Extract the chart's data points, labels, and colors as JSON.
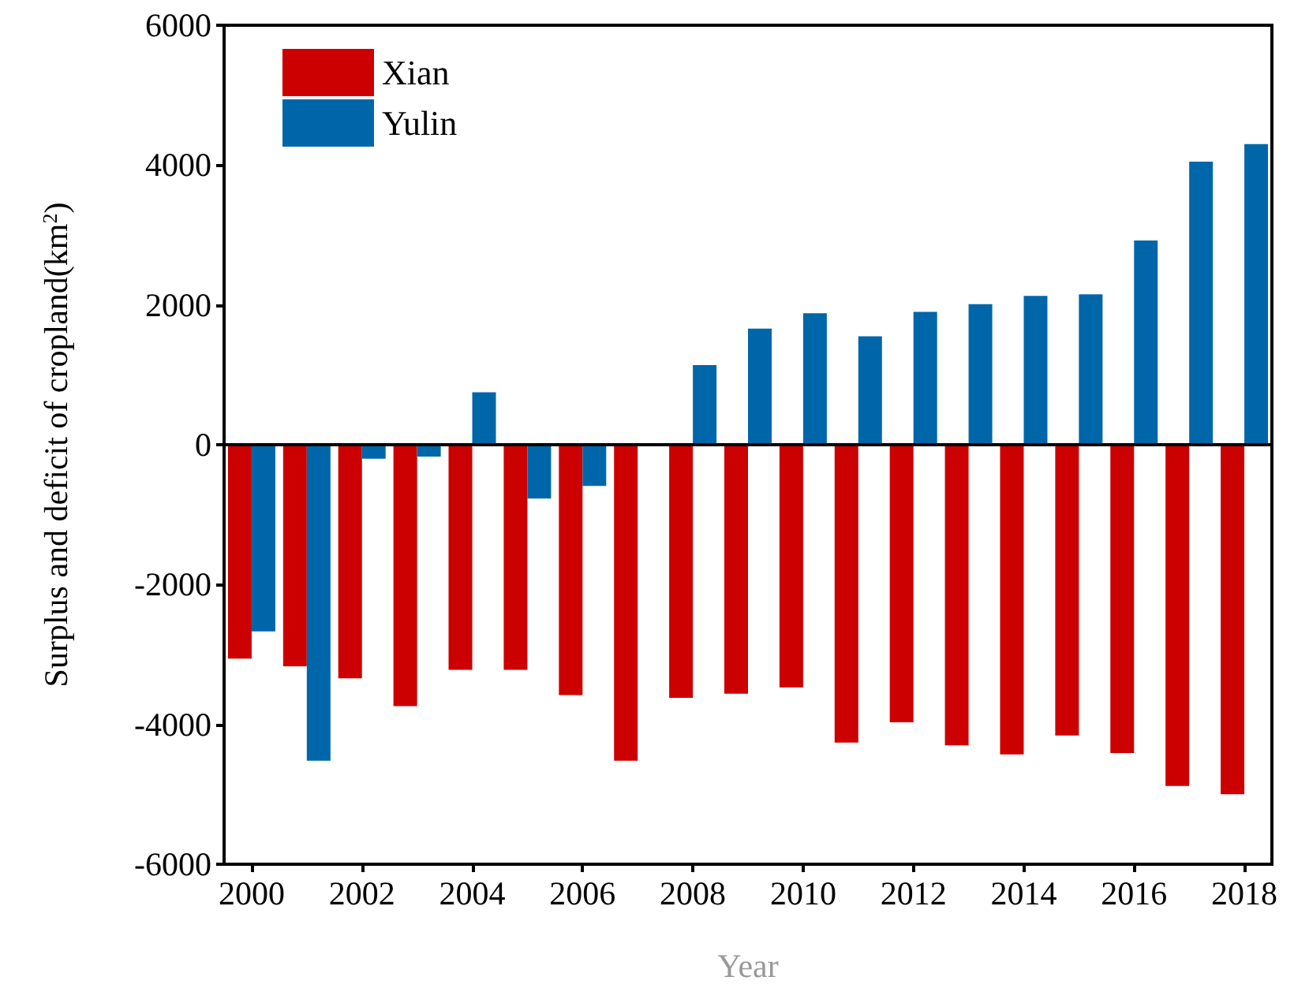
{
  "chart_data": {
    "type": "bar",
    "xlabel": "Year",
    "ylabel": "Surplus and deficit of cropland(km$^{2}$)",
    "categories": [
      "2000",
      null,
      "2002",
      null,
      "2004",
      null,
      "2006",
      null,
      "2008",
      null,
      "2010",
      null,
      "2012",
      null,
      "2014",
      null,
      "2016",
      null,
      "2018"
    ],
    "series": [
      {
        "name": "Xian",
        "color": "#cc0000",
        "values": [
          -3060,
          -3170,
          -3340,
          -3740,
          -3220,
          -3220,
          -3580,
          -4520,
          -3620,
          -3560,
          -3470,
          -4260,
          -3970,
          -4300,
          -4430,
          -4160,
          -4410,
          -4880,
          -5000
        ]
      },
      {
        "name": "Yulin",
        "color": "#0066aa",
        "values": [
          -2670,
          -4520,
          -200,
          -170,
          750,
          -770,
          -590,
          null,
          1140,
          1660,
          1880,
          1550,
          1900,
          2010,
          2130,
          2150,
          2920,
          4050,
          4300
        ]
      }
    ],
    "ylim": [
      -6000,
      6000
    ],
    "yticks": [
      -6000,
      -4000,
      -2000,
      0,
      2000,
      4000,
      6000
    ],
    "ref_lines": [
      {
        "axis": "y",
        "value": 0
      }
    ],
    "legend": "top left"
  }
}
